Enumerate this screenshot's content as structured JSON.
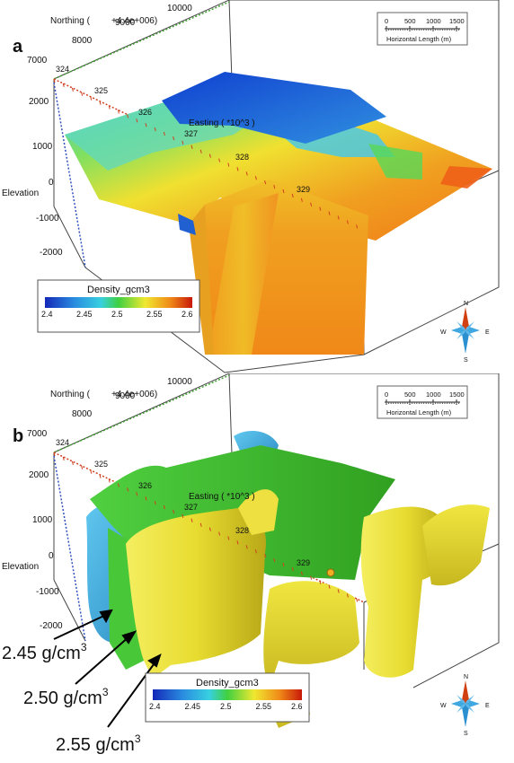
{
  "panel_a": {
    "label": "a",
    "northing_label": "Northing (",
    "northing_exp": "+4.4e+006)",
    "northing_ticks": [
      "7000",
      "8000",
      "9000",
      "10000"
    ],
    "easting_label": "Easting ( *10^3 )",
    "easting_ticks": [
      "324",
      "325",
      "326",
      "327",
      "328",
      "329"
    ],
    "elevation_label": "Elevation",
    "elevation_ticks": [
      "2000",
      "1000",
      "0",
      "-1000",
      "-2000"
    ],
    "scale": {
      "ticks": [
        "0",
        "500",
        "1000",
        "1500"
      ],
      "label": "Horizontal Length (m)"
    },
    "colorbar": {
      "title": "Density_gcm3",
      "ticks": [
        "2.4",
        "2.45",
        "2.5",
        "2.55",
        "2.6"
      ]
    },
    "compass": {
      "n": "N",
      "s": "S",
      "e": "E",
      "w": "W"
    }
  },
  "panel_b": {
    "label": "b",
    "northing_label": "Northing (",
    "northing_exp": "+4.4e+006)",
    "northing_ticks": [
      "7000",
      "8000",
      "9000",
      "10000"
    ],
    "easting_label": "Easting ( *10^3 )",
    "easting_ticks": [
      "324",
      "325",
      "326",
      "327",
      "328",
      "329"
    ],
    "elevation_label": "Elevation",
    "elevation_ticks": [
      "2000",
      "1000",
      "0",
      "-1000",
      "-2000"
    ],
    "scale": {
      "ticks": [
        "0",
        "500",
        "1000",
        "1500"
      ],
      "label": "Horizontal Length (m)"
    },
    "colorbar": {
      "title": "Density_gcm3",
      "ticks": [
        "2.4",
        "2.45",
        "2.5",
        "2.55",
        "2.6"
      ]
    },
    "compass": {
      "n": "N",
      "s": "S",
      "e": "E",
      "w": "W"
    },
    "annotations": [
      {
        "base": "2.45 g/cm",
        "sup": "3"
      },
      {
        "base": "2.50 g/cm",
        "sup": "3"
      },
      {
        "base": "2.55 g/cm",
        "sup": "3"
      }
    ]
  },
  "colors": {
    "low": "#1030c0",
    "cyan": "#3ab8e0",
    "green": "#40c840",
    "yellow": "#f0e830",
    "orange": "#f08a18",
    "high": "#d02010"
  }
}
